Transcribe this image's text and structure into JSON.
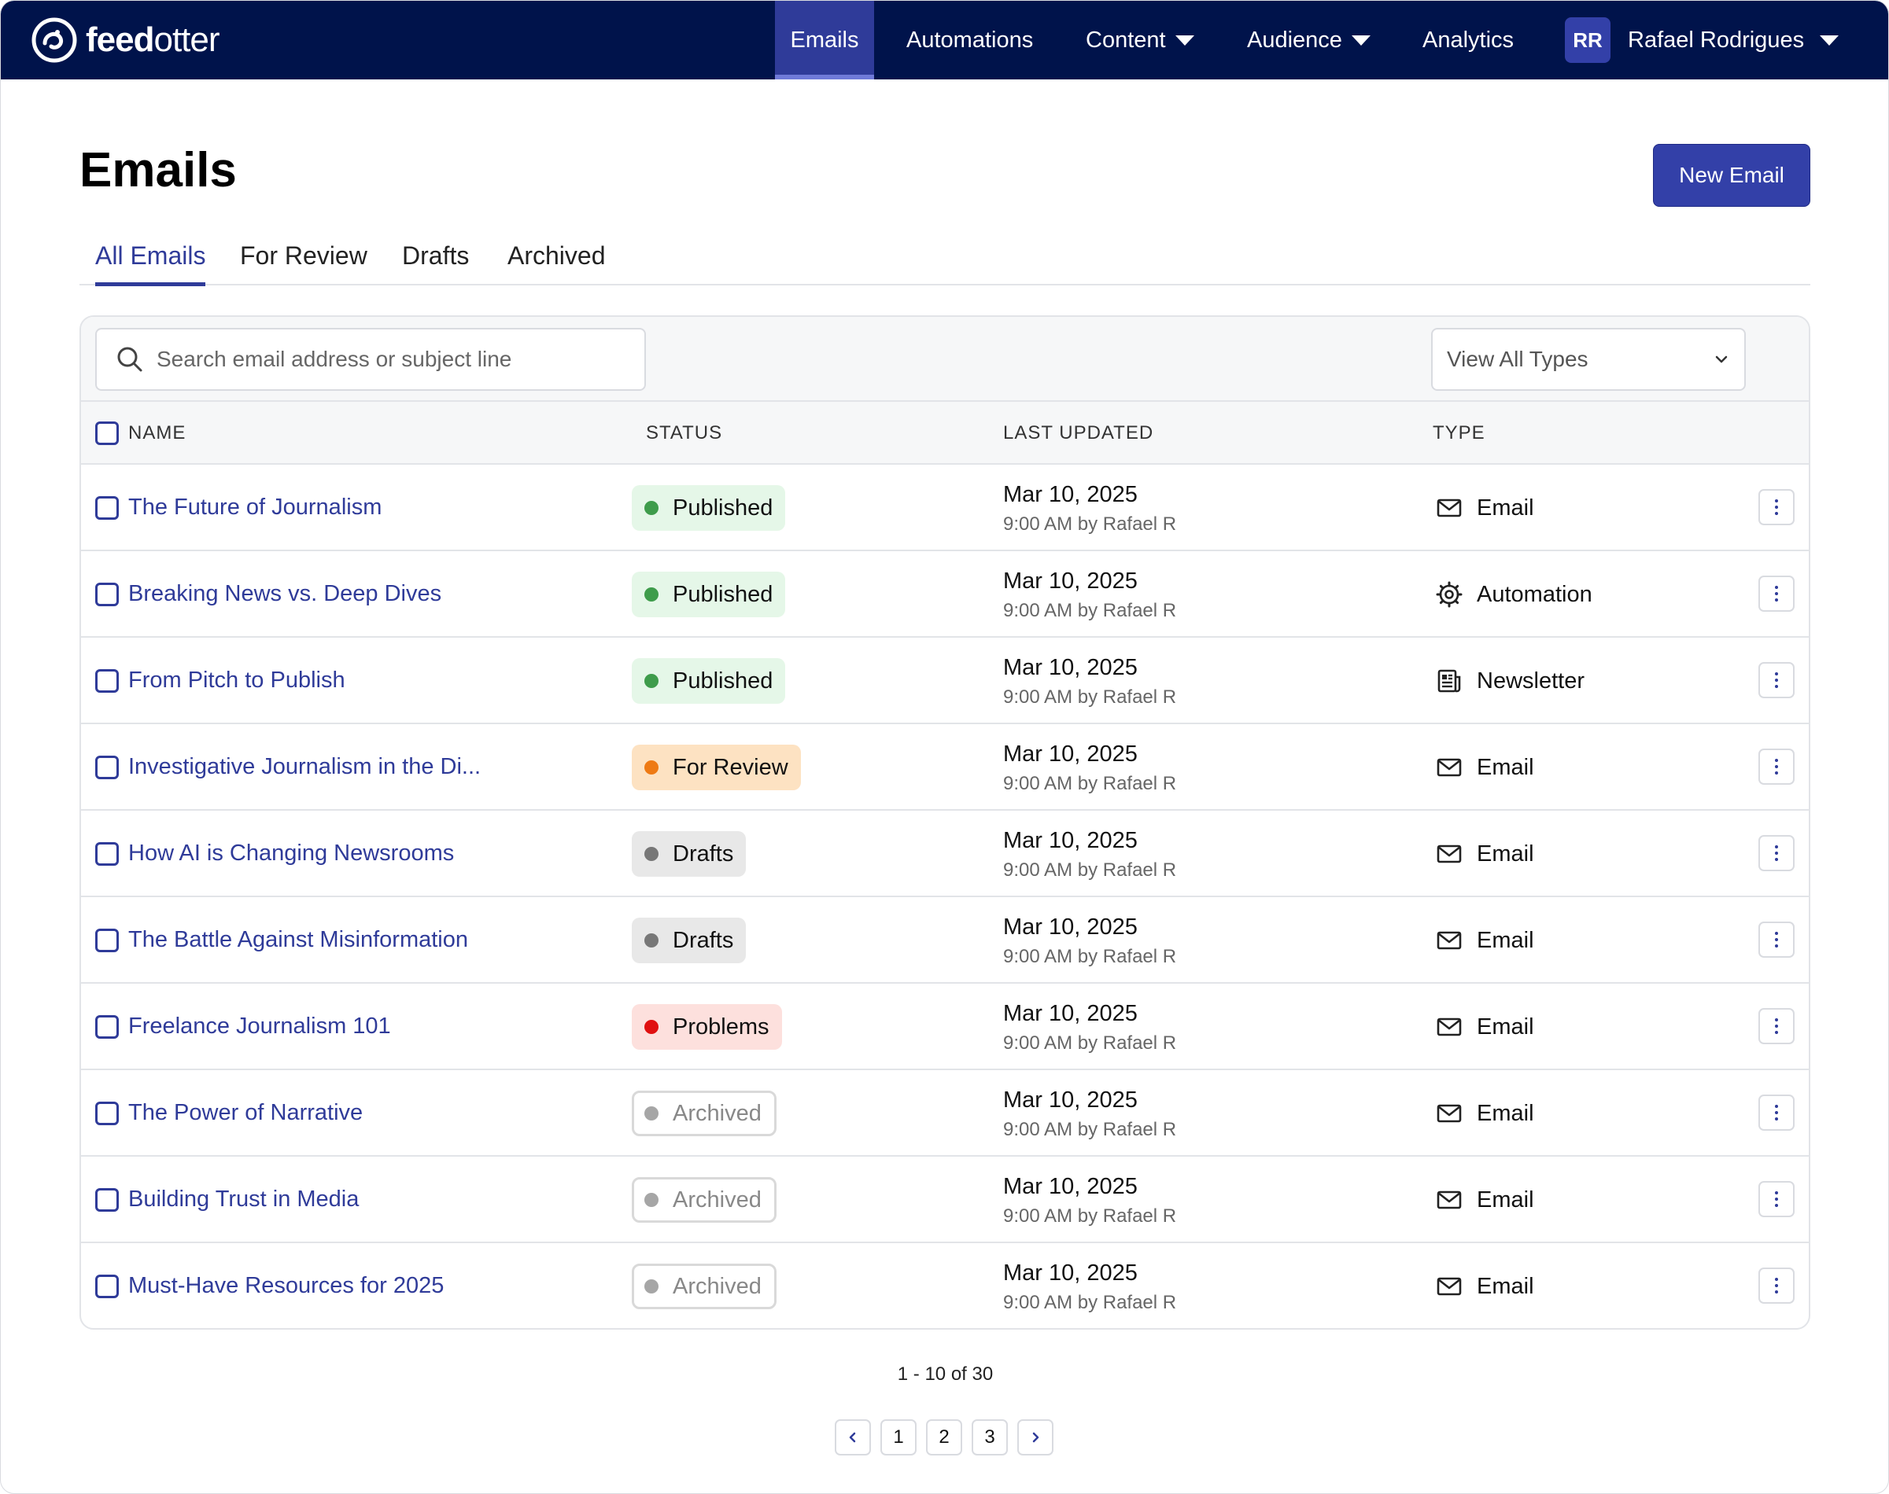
{
  "app": {
    "brand_light": "feed",
    "brand_bold": "otter",
    "brand_color": "#00134b",
    "accent_color": "#2f3b99"
  },
  "nav": {
    "items": [
      {
        "label": "Emails",
        "active": true
      },
      {
        "label": "Automations"
      },
      {
        "label": "Content",
        "dropdown": true
      },
      {
        "label": "Audience",
        "dropdown": true
      },
      {
        "label": "Analytics"
      }
    ],
    "user": {
      "initials": "RR",
      "name": "Rafael Rodrigues"
    }
  },
  "header": {
    "title": "Emails",
    "new_button": "New Email"
  },
  "tabs": [
    {
      "label": "All Emails",
      "active": true
    },
    {
      "label": "For Review"
    },
    {
      "label": "Drafts"
    },
    {
      "label": "Archived"
    }
  ],
  "filters": {
    "search_placeholder": "Search email address or subject line",
    "type_select": "View All Types"
  },
  "table": {
    "columns": {
      "name": "NAME",
      "status": "STATUS",
      "updated": "LAST UPDATED",
      "type": "TYPE"
    },
    "rows": [
      {
        "name": "The Future of Journalism",
        "status": "Published",
        "status_kind": "published",
        "date": "Mar 10, 2025",
        "meta": "9:00 AM by Rafael R",
        "type": "Email",
        "type_icon": "mail-icon"
      },
      {
        "name": "Breaking News vs. Deep Dives",
        "status": "Published",
        "status_kind": "published",
        "date": "Mar 10, 2025",
        "meta": "9:00 AM by Rafael R",
        "type": "Automation",
        "type_icon": "gear-icon"
      },
      {
        "name": "From Pitch to Publish",
        "status": "Published",
        "status_kind": "published",
        "date": "Mar 10, 2025",
        "meta": "9:00 AM by Rafael R",
        "type": "Newsletter",
        "type_icon": "newspaper-icon"
      },
      {
        "name": "Investigative Journalism in the Di...",
        "status": "For Review",
        "status_kind": "review",
        "date": "Mar 10, 2025",
        "meta": "9:00 AM by Rafael R",
        "type": "Email",
        "type_icon": "mail-icon"
      },
      {
        "name": "How AI is Changing Newsrooms",
        "status": "Drafts",
        "status_kind": "drafts",
        "date": "Mar 10, 2025",
        "meta": "9:00 AM by Rafael R",
        "type": "Email",
        "type_icon": "mail-icon"
      },
      {
        "name": "The Battle Against Misinformation",
        "status": "Drafts",
        "status_kind": "drafts",
        "date": "Mar 10, 2025",
        "meta": "9:00 AM by Rafael R",
        "type": "Email",
        "type_icon": "mail-icon"
      },
      {
        "name": "Freelance Journalism 101",
        "status": "Problems",
        "status_kind": "problems",
        "date": "Mar 10, 2025",
        "meta": "9:00 AM by Rafael R",
        "type": "Email",
        "type_icon": "mail-icon"
      },
      {
        "name": "The Power of Narrative",
        "status": "Archived",
        "status_kind": "archived",
        "date": "Mar 10, 2025",
        "meta": "9:00 AM by Rafael R",
        "type": "Email",
        "type_icon": "mail-icon"
      },
      {
        "name": "Building Trust in Media",
        "status": "Archived",
        "status_kind": "archived",
        "date": "Mar 10, 2025",
        "meta": "9:00 AM by Rafael R",
        "type": "Email",
        "type_icon": "mail-icon"
      },
      {
        "name": "Must-Have Resources for 2025",
        "status": "Archived",
        "status_kind": "archived",
        "date": "Mar 10, 2025",
        "meta": "9:00 AM by Rafael R",
        "type": "Email",
        "type_icon": "mail-icon"
      }
    ]
  },
  "pagination": {
    "summary": "1 - 10 of 30",
    "pages": [
      "1",
      "2",
      "3"
    ]
  }
}
